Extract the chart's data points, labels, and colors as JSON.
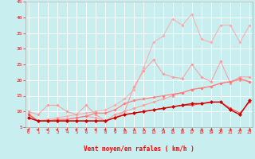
{
  "x": [
    0,
    1,
    2,
    3,
    4,
    5,
    6,
    7,
    8,
    9,
    10,
    11,
    12,
    13,
    14,
    15,
    16,
    17,
    18,
    19,
    20,
    21,
    22,
    23
  ],
  "lines": [
    {
      "color": "#FFAAAA",
      "lw": 0.7,
      "ms": 2.0,
      "y": [
        8.0,
        7.0,
        7.5,
        8.0,
        8.5,
        9.0,
        9.5,
        10.0,
        10.5,
        12.0,
        14.0,
        17.0,
        24.0,
        32.0,
        34.0,
        39.5,
        37.5,
        41.0,
        33.0,
        32.0,
        37.5,
        37.5,
        32.0,
        37.5
      ]
    },
    {
      "color": "#FF9999",
      "lw": 0.7,
      "ms": 2.0,
      "y": [
        10.0,
        9.0,
        12.0,
        12.0,
        10.0,
        9.0,
        12.0,
        9.0,
        7.0,
        8.0,
        10.0,
        18.0,
        23.0,
        26.5,
        22.0,
        21.0,
        20.5,
        25.0,
        21.0,
        19.5,
        26.0,
        19.0,
        21.0,
        21.0
      ]
    },
    {
      "color": "#FF9999",
      "lw": 0.7,
      "ms": 2.0,
      "y": [
        9.5,
        7.0,
        7.0,
        7.0,
        7.5,
        8.0,
        8.5,
        8.0,
        7.0,
        9.0,
        10.0,
        11.0,
        12.0,
        13.0,
        14.0,
        15.0,
        16.0,
        17.0,
        17.5,
        18.0,
        19.0,
        19.5,
        20.0,
        19.5
      ]
    },
    {
      "color": "#FF7777",
      "lw": 0.8,
      "ms": 2.0,
      "y": [
        8.0,
        7.0,
        7.0,
        7.5,
        7.5,
        8.0,
        8.5,
        9.5,
        9.5,
        10.5,
        12.5,
        13.5,
        14.0,
        14.5,
        15.0,
        15.5,
        16.0,
        17.0,
        17.5,
        18.0,
        19.0,
        19.5,
        20.5,
        19.5
      ]
    },
    {
      "color": "#FF4444",
      "lw": 0.8,
      "ms": 2.0,
      "y": [
        9.0,
        7.0,
        7.0,
        7.0,
        7.0,
        7.0,
        7.0,
        7.0,
        7.0,
        8.0,
        9.0,
        9.5,
        10.0,
        10.5,
        11.0,
        11.5,
        12.0,
        12.0,
        12.5,
        13.0,
        13.0,
        11.0,
        9.5,
        13.0
      ]
    },
    {
      "color": "#CC0000",
      "lw": 1.0,
      "ms": 2.5,
      "y": [
        8.0,
        7.0,
        7.0,
        7.0,
        7.0,
        7.0,
        7.0,
        7.0,
        7.0,
        8.0,
        9.0,
        9.5,
        10.0,
        10.5,
        11.0,
        11.5,
        12.0,
        12.5,
        12.5,
        13.0,
        13.0,
        10.5,
        9.0,
        13.5
      ]
    }
  ],
  "xlim": [
    -0.3,
    23.3
  ],
  "ylim": [
    5,
    45
  ],
  "yticks": [
    5,
    10,
    15,
    20,
    25,
    30,
    35,
    40,
    45
  ],
  "xticks": [
    0,
    1,
    2,
    3,
    4,
    5,
    6,
    7,
    8,
    9,
    10,
    11,
    12,
    13,
    14,
    15,
    16,
    17,
    18,
    19,
    20,
    21,
    22,
    23
  ],
  "xlabel": "Vent moyen/en rafales ( km/h )",
  "bg": "#C8EEF0",
  "grid_color": "#FFFFFF",
  "red": "#FF0000",
  "arrow_angles": [
    225,
    230,
    225,
    230,
    220,
    220,
    225,
    220,
    225,
    180,
    180,
    180,
    180,
    180,
    180,
    180,
    180,
    180,
    180,
    180,
    180,
    180,
    180,
    180
  ]
}
